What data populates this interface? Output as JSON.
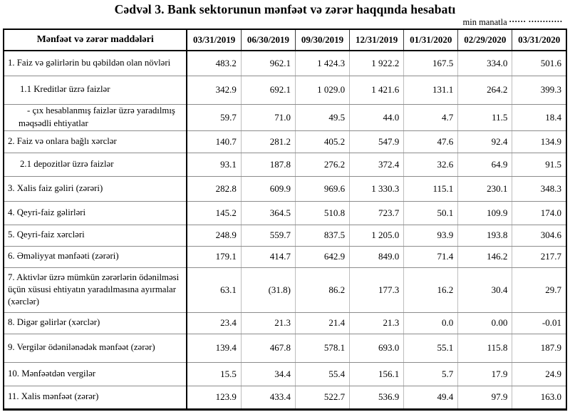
{
  "page": {
    "title": "Cədvəl 3. Bank sektorunun mənfəət və zərər haqqında hesabatı",
    "unit_label": "min manatla",
    "unit_dots": "•••••• ••••••••••••"
  },
  "table": {
    "header": {
      "items_label": "Mənfəət və zərər maddələri",
      "periods": [
        "03/31/2019",
        "06/30/2019",
        "09/30/2019",
        "12/31/2019",
        "01/31/2020",
        "02/29/2020",
        "03/31/2020"
      ]
    },
    "rows": [
      {
        "label": "1. Faiz və gəlirlərin bu qəbildən olan növləri",
        "values": [
          "483.2",
          "962.1",
          "1 424.3",
          "1 922.2",
          "167.5",
          "334.0",
          "501.6"
        ]
      },
      {
        "label": "1.1 Kreditlər üzrə faizlər",
        "values": [
          "342.9",
          "692.1",
          "1 029.0",
          "1 421.6",
          "131.1",
          "264.2",
          "399.3"
        ]
      },
      {
        "label": "- çıx hesablanmış faizlər üzrə yaradılmış məqsədli ehtiyatlar",
        "values": [
          "59.7",
          "71.0",
          "49.5",
          "44.0",
          "4.7",
          "11.5",
          "18.4"
        ]
      },
      {
        "label": "2. Faiz və onlara bağlı xərclər",
        "values": [
          "140.7",
          "281.2",
          "405.2",
          "547.9",
          "47.6",
          "92.4",
          "134.9"
        ]
      },
      {
        "label": "2.1 depozitlər üzrə faizlər",
        "values": [
          "93.1",
          "187.8",
          "276.2",
          "372.4",
          "32.6",
          "64.9",
          "91.5"
        ]
      },
      {
        "label": "3. Xalis faiz gəliri (zərəri)",
        "values": [
          "282.8",
          "609.9",
          "969.6",
          "1 330.3",
          "115.1",
          "230.1",
          "348.3"
        ]
      },
      {
        "label": "4. Qeyri-faiz gəlirləri",
        "values": [
          "145.2",
          "364.5",
          "510.8",
          "723.7",
          "50.1",
          "109.9",
          "174.0"
        ]
      },
      {
        "label": "5. Qeyri-faiz xərcləri",
        "values": [
          "248.9",
          "559.7",
          "837.5",
          "1 205.0",
          "93.9",
          "193.8",
          "304.6"
        ]
      },
      {
        "label": "6. Əməliyyat mənfəəti (zərəri)",
        "values": [
          "179.1",
          "414.7",
          "642.9",
          "849.0",
          "71.4",
          "146.2",
          "217.7"
        ]
      },
      {
        "label": "7. Aktivlər üzrə mümkün zərərlərin ödənilməsi üçün xüsusi ehtiyatın yaradılmasına ayırmalar (xərclər)",
        "values": [
          "63.1",
          "(31.8)",
          "86.2",
          "177.3",
          "16.2",
          "30.4",
          "29.7"
        ]
      },
      {
        "label": "8. Digər gəlirlər (xərclər)",
        "values": [
          "23.4",
          "21.3",
          "21.4",
          "21.3",
          "0.0",
          "0.00",
          "-0.01"
        ]
      },
      {
        "label": "9. Vergilər ödənilənədək mənfəət (zərər)",
        "values": [
          "139.4",
          "467.8",
          "578.1",
          "693.0",
          "55.1",
          "115.8",
          "187.9"
        ]
      },
      {
        "label": "10. Mənfəətdən vergilər",
        "values": [
          "15.5",
          "34.4",
          "55.4",
          "156.1",
          "5.7",
          "17.9",
          "24.9"
        ]
      },
      {
        "label": "11. Xalis mənfəət (zərər)",
        "values": [
          "123.9",
          "433.4",
          "522.7",
          "536.9",
          "49.4",
          "97.9",
          "163.0"
        ]
      }
    ]
  }
}
